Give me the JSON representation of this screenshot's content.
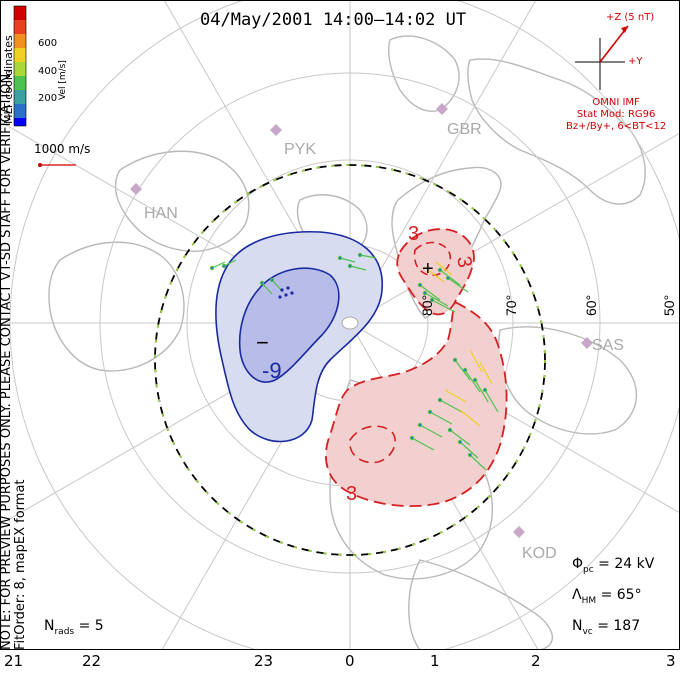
{
  "title": "04/May/2001 14:00–14:02 UT",
  "mlt_ticks": [
    "21",
    "22",
    "23",
    "0",
    "1",
    "2",
    "3"
  ],
  "side_note": {
    "line1": "NOTE: FOR PREVIEW PURPOSES ONLY. PLEASE CONTACT VT-SD STAFF FOR VERIFICATION.",
    "line2": "FitOrder: 8, mapEX format"
  },
  "colorbar": {
    "title": "MLT coordinates",
    "unit": "Vel [m/s]",
    "labels": [
      "600",
      "400",
      "200"
    ],
    "colors": [
      "#0000ff",
      "#2a6fc8",
      "#3aa0a0",
      "#4ec24e",
      "#a8d83a",
      "#f0d020",
      "#f09020",
      "#e84020",
      "#d00000"
    ]
  },
  "scale_vector": {
    "label": "1000 m/s"
  },
  "imf": {
    "z_label": "+Z (5 nT)",
    "y_label": "+Y",
    "source": "OMNI IMF",
    "stat_mod": "Stat Mod: RG96",
    "condition": "Bz+/By+, 6<BT<12"
  },
  "latitude_labels": [
    "80°",
    "70°",
    "60°",
    "50°"
  ],
  "radar_labels": [
    "PYK",
    "GBR",
    "HAN",
    "SAS",
    "KOD"
  ],
  "contour_labels": [
    "-9",
    "3",
    "3",
    "3"
  ],
  "extremum_marks": [
    "−",
    "+"
  ],
  "stats": {
    "phi_pc": {
      "symbol": "Φ",
      "sub": "pc",
      "value": "= 24 kV"
    },
    "lambda_hm": {
      "symbol": "Λ",
      "sub": "HM",
      "value": "= 65°"
    },
    "n_vc": {
      "symbol": "N",
      "sub": "vc",
      "value": "= 187"
    }
  },
  "nrads": {
    "symbol": "N",
    "sub": "rads",
    "value": "= 5"
  },
  "colors": {
    "negative_cell": "#1a2aa0",
    "positive_cell": "#d42020",
    "coast": "#b8b8b8",
    "grid": "#c8c8c8"
  }
}
